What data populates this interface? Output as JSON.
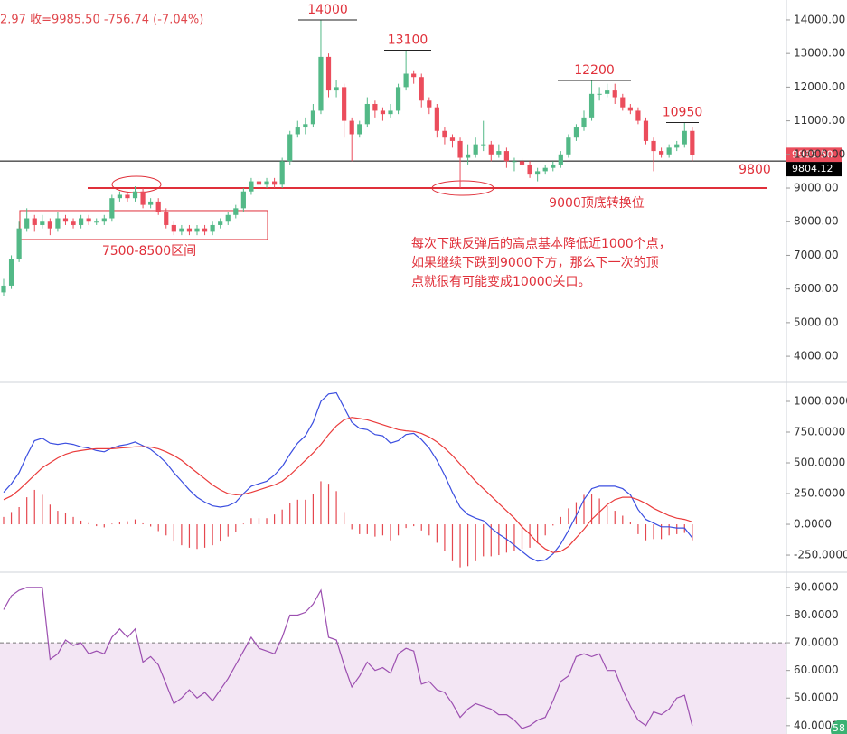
{
  "badge": "58",
  "chart_data": [
    {
      "type": "candlestick",
      "header": "2.97  收=9985.50  -756.74 (-7.04%)",
      "up_color": "#53b987",
      "down_color": "#eb4d5c",
      "open": [
        5900,
        6100,
        6900,
        7800,
        8100,
        7900,
        8000,
        7800,
        8100,
        8000,
        7900,
        8100,
        8000,
        8000,
        8100,
        8700,
        8800,
        8700,
        8900,
        8500,
        8600,
        8300,
        7900,
        7700,
        7800,
        7700,
        7800,
        7700,
        7900,
        8000,
        8200,
        8400,
        8900,
        9200,
        9100,
        9200,
        9100,
        9800,
        10600,
        10800,
        10900,
        11300,
        12900,
        11900,
        12000,
        11000,
        10600,
        10900,
        11500,
        11300,
        11200,
        11300,
        12000,
        12400,
        12300,
        11600,
        11400,
        10700,
        10500,
        10400,
        9900,
        10000,
        10300,
        10300,
        10000,
        10100,
        9800,
        9800,
        9700,
        9400,
        9500,
        9600,
        9700,
        10000,
        10500,
        10800,
        11100,
        11800,
        11800,
        11900,
        11700,
        11400,
        11300,
        11000,
        10400,
        10100,
        10000,
        10200,
        10300,
        10700
      ],
      "high": [
        6300,
        7000,
        8000,
        8400,
        8200,
        8200,
        8100,
        8300,
        8200,
        8100,
        8200,
        8200,
        8100,
        8200,
        8800,
        8900,
        8900,
        9050,
        9000,
        8700,
        8700,
        8400,
        8000,
        7900,
        7900,
        7900,
        7900,
        8000,
        8100,
        8300,
        8500,
        9000,
        9300,
        9300,
        9300,
        9300,
        9900,
        10700,
        11000,
        11100,
        11500,
        14000,
        13000,
        12200,
        12100,
        11100,
        11000,
        11700,
        11600,
        11400,
        11500,
        12100,
        13100,
        12500,
        12400,
        11700,
        11500,
        10800,
        10600,
        10500,
        10300,
        10500,
        11000,
        10400,
        10300,
        10200,
        9900,
        9900,
        9800,
        9600,
        9700,
        9800,
        10100,
        10600,
        10900,
        11300,
        12200,
        12000,
        12100,
        12100,
        11800,
        11500,
        11400,
        11100,
        10500,
        10200,
        10300,
        10400,
        10950,
        10800
      ],
      "low": [
        5800,
        6000,
        6800,
        7700,
        7700,
        7800,
        7600,
        7700,
        7900,
        7800,
        7800,
        7900,
        7900,
        7900,
        8000,
        8600,
        8600,
        8600,
        8400,
        8400,
        8200,
        7800,
        7600,
        7600,
        7600,
        7600,
        7600,
        7600,
        7800,
        7900,
        8100,
        8300,
        8800,
        9000,
        9000,
        9000,
        9000,
        9700,
        10500,
        10600,
        10800,
        11200,
        11700,
        11700,
        10500,
        9800,
        10500,
        10800,
        11100,
        11000,
        11100,
        11200,
        11900,
        12100,
        11400,
        11200,
        10500,
        10300,
        10200,
        9000,
        9700,
        9900,
        10100,
        9800,
        9900,
        9600,
        9500,
        9500,
        9300,
        9200,
        9400,
        9500,
        9600,
        9900,
        10400,
        10700,
        11000,
        11600,
        11700,
        11500,
        11300,
        11200,
        10900,
        10300,
        9500,
        9900,
        9900,
        10100,
        10200,
        9800
      ],
      "close": [
        6100,
        6900,
        7800,
        8100,
        7900,
        8000,
        7800,
        8100,
        8000,
        7900,
        8100,
        8000,
        8000,
        8100,
        8700,
        8800,
        8700,
        8900,
        8500,
        8600,
        8300,
        7900,
        7700,
        7800,
        7700,
        7800,
        7700,
        7900,
        8000,
        8200,
        8400,
        8900,
        9200,
        9100,
        9200,
        9100,
        9800,
        10600,
        10800,
        10900,
        11300,
        12900,
        11900,
        12000,
        11000,
        10600,
        10900,
        11500,
        11300,
        11200,
        11300,
        12000,
        12400,
        12300,
        11600,
        11400,
        10700,
        10500,
        10400,
        9900,
        10000,
        10300,
        10300,
        10000,
        10100,
        9800,
        9800,
        9700,
        9400,
        9500,
        9600,
        9700,
        10000,
        10500,
        10800,
        11100,
        11800,
        11800,
        11900,
        11700,
        11400,
        11300,
        11000,
        10400,
        10100,
        10000,
        10200,
        10300,
        10700,
        9985.5
      ],
      "ylim": [
        3250,
        14590
      ],
      "yticks": [
        {
          "value": 4000,
          "label": "4000.00"
        },
        {
          "value": 5000,
          "label": "5000.00"
        },
        {
          "value": 6000,
          "label": "6000.00"
        },
        {
          "value": 7000,
          "label": "7000.00"
        },
        {
          "value": 8000,
          "label": "8000.00"
        },
        {
          "value": 9000,
          "label": "9000.00"
        },
        {
          "value": 10000,
          "label": "10000.00"
        },
        {
          "value": 11000,
          "label": "11000.00"
        },
        {
          "value": 12000,
          "label": "12000.00"
        },
        {
          "value": 13000,
          "label": "13000.00"
        },
        {
          "value": 14000,
          "label": "14000.00"
        }
      ],
      "peaks": [
        14000,
        13100,
        12200,
        10950
      ],
      "support_level": 9000,
      "support_note": "9000顶底转换位",
      "support_label": 9800,
      "range_box": {
        "low": 7470,
        "high": 8330,
        "label": "7500-8500区间"
      },
      "note": [
        "每次下跌反弹后的高点基本降低近1000个点，",
        "如果继续下跌到9000下方，那么下一次的顶",
        "点就很有可能变成10000关口。"
      ],
      "last_close": {
        "value": 9985.5,
        "label": "9985.50"
      },
      "price_line": 9804.12
    },
    {
      "type": "macd",
      "lines": [
        {
          "color": "#3b4ee0",
          "values": [
            260,
            330,
            420,
            560,
            680,
            700,
            660,
            650,
            660,
            650,
            630,
            620,
            600,
            590,
            620,
            640,
            650,
            670,
            640,
            610,
            560,
            500,
            420,
            350,
            280,
            220,
            180,
            150,
            140,
            150,
            180,
            250,
            310,
            330,
            350,
            400,
            470,
            570,
            660,
            720,
            830,
            1000,
            1060,
            1070,
            950,
            830,
            780,
            770,
            730,
            720,
            660,
            680,
            730,
            740,
            690,
            620,
            520,
            400,
            260,
            140,
            80,
            50,
            30,
            -30,
            -80,
            -120,
            -170,
            -220,
            -270,
            -300,
            -290,
            -240,
            -160,
            -50,
            70,
            200,
            290,
            310,
            310,
            310,
            290,
            240,
            120,
            40,
            10,
            -20,
            -20,
            -30,
            -30,
            -110
          ]
        },
        {
          "color": "#ea3b3b",
          "values": [
            200,
            230,
            280,
            340,
            400,
            460,
            500,
            540,
            570,
            590,
            600,
            610,
            615,
            615,
            615,
            620,
            625,
            630,
            632,
            628,
            615,
            590,
            560,
            520,
            470,
            420,
            370,
            320,
            280,
            250,
            240,
            245,
            260,
            280,
            300,
            320,
            350,
            400,
            460,
            520,
            580,
            650,
            730,
            800,
            850,
            870,
            860,
            850,
            830,
            810,
            790,
            770,
            760,
            755,
            740,
            710,
            670,
            620,
            560,
            490,
            420,
            350,
            290,
            230,
            170,
            110,
            50,
            -20,
            -80,
            -150,
            -200,
            -230,
            -220,
            -180,
            -110,
            -40,
            40,
            100,
            160,
            200,
            220,
            220,
            200,
            170,
            130,
            100,
            70,
            50,
            40,
            20
          ]
        }
      ],
      "histogram": {
        "color": "#e5474f",
        "values": [
          60,
          100,
          140,
          220,
          280,
          240,
          160,
          110,
          90,
          60,
          30,
          10,
          -15,
          -25,
          5,
          20,
          25,
          40,
          8,
          -18,
          -55,
          -90,
          -140,
          -170,
          -190,
          -200,
          -190,
          -170,
          -140,
          -100,
          -60,
          5,
          50,
          50,
          50,
          80,
          120,
          170,
          200,
          200,
          250,
          350,
          330,
          270,
          100,
          -40,
          -80,
          -80,
          -100,
          -90,
          -130,
          -90,
          -30,
          -15,
          -50,
          -90,
          -150,
          -220,
          -300,
          -350,
          -340,
          -300,
          -260,
          -260,
          -250,
          -230,
          -220,
          -200,
          -190,
          -150,
          -90,
          -10,
          60,
          130,
          180,
          240,
          250,
          210,
          150,
          110,
          70,
          20,
          -80,
          -130,
          -120,
          -120,
          -90,
          -80,
          -70,
          -130
        ]
      },
      "ylim": [
        -382,
        1147
      ],
      "yticks": [
        {
          "value": -250,
          "label": "-250.0000"
        },
        {
          "value": 0,
          "label": "0.0000"
        },
        {
          "value": 250,
          "label": "250.0000"
        },
        {
          "value": 500,
          "label": "500.0000"
        },
        {
          "value": 750,
          "label": "750.0000"
        },
        {
          "value": 1000,
          "label": "1000.0000"
        }
      ]
    },
    {
      "type": "rsi",
      "color": "#9c4fb0",
      "values": [
        82,
        87,
        89,
        90,
        90,
        90,
        64,
        66,
        71,
        69,
        70,
        66,
        67,
        66,
        72,
        75,
        72,
        75,
        63,
        65,
        62,
        55,
        48,
        50,
        53,
        50,
        52,
        49,
        53,
        57,
        62,
        67,
        72,
        68,
        67,
        66,
        72,
        80,
        80,
        81,
        84,
        89,
        72,
        71,
        62,
        54,
        58,
        63,
        60,
        61,
        59,
        66,
        68,
        67,
        55,
        56,
        53,
        52,
        48,
        43,
        46,
        48,
        47,
        46,
        44,
        44,
        42,
        39,
        40,
        42,
        43,
        49,
        56,
        58,
        65,
        66,
        65,
        66,
        60,
        60,
        53,
        47,
        42,
        40,
        45,
        44,
        46,
        50,
        51,
        40
      ],
      "level": 70,
      "ylim": [
        37,
        95.2
      ],
      "yticks": [
        {
          "value": 40,
          "label": "40.0000"
        },
        {
          "value": 50,
          "label": "50.0000"
        },
        {
          "value": 60,
          "label": "60.0000"
        },
        {
          "value": 70,
          "label": "70.0000"
        },
        {
          "value": 80,
          "label": "80.0000"
        },
        {
          "value": 90,
          "label": "90.0000"
        }
      ]
    }
  ]
}
